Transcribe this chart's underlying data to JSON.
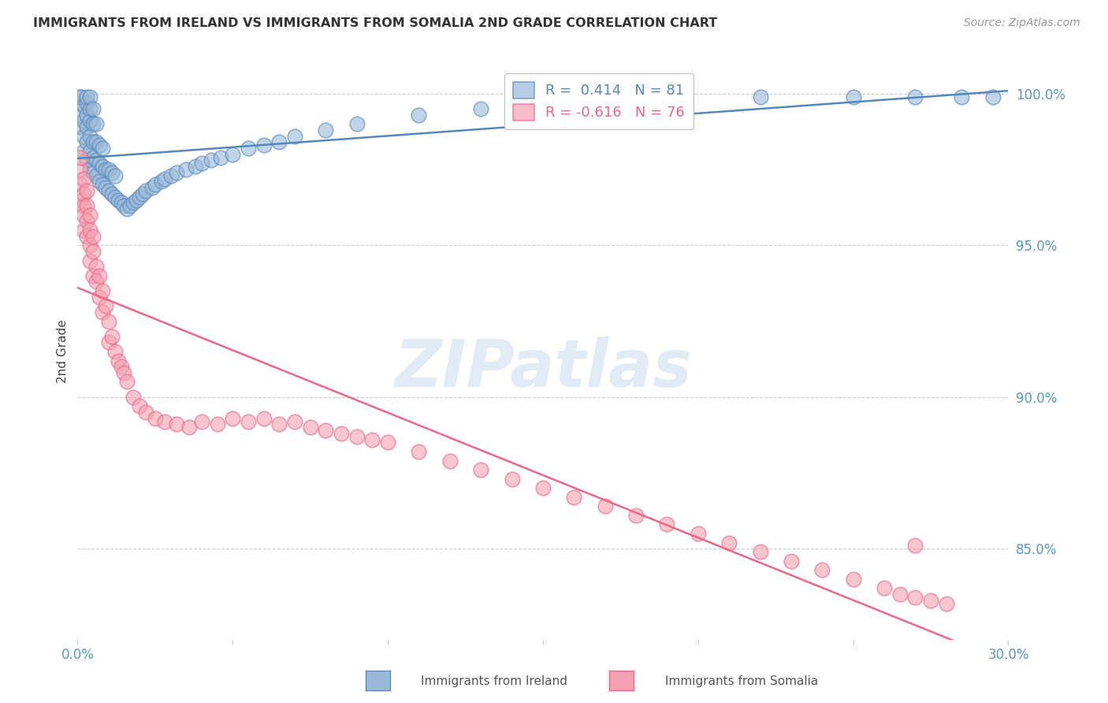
{
  "title": "IMMIGRANTS FROM IRELAND VS IMMIGRANTS FROM SOMALIA 2ND GRADE CORRELATION CHART",
  "source": "Source: ZipAtlas.com",
  "ylabel": "2nd Grade",
  "r_ireland": 0.414,
  "n_ireland": 81,
  "r_somalia": -0.616,
  "n_somalia": 76,
  "color_ireland": "#9AB8D8",
  "color_somalia": "#F4A0B0",
  "color_ireland_line": "#5588BB",
  "color_somalia_line": "#EE6688",
  "color_axis": "#5599CC",
  "watermark": "ZIPatlas",
  "legend_ireland": "Immigrants from Ireland",
  "legend_somalia": "Immigrants from Somalia",
  "xmin": 0.0,
  "xmax": 0.3,
  "ymin": 0.82,
  "ymax": 1.01,
  "ireland_x": [
    0.001,
    0.001,
    0.001,
    0.001,
    0.001,
    0.002,
    0.002,
    0.002,
    0.002,
    0.003,
    0.003,
    0.003,
    0.003,
    0.003,
    0.003,
    0.004,
    0.004,
    0.004,
    0.004,
    0.004,
    0.004,
    0.005,
    0.005,
    0.005,
    0.005,
    0.005,
    0.006,
    0.006,
    0.006,
    0.006,
    0.007,
    0.007,
    0.007,
    0.008,
    0.008,
    0.008,
    0.009,
    0.009,
    0.01,
    0.01,
    0.011,
    0.011,
    0.012,
    0.012,
    0.013,
    0.014,
    0.015,
    0.016,
    0.017,
    0.018,
    0.019,
    0.02,
    0.021,
    0.022,
    0.024,
    0.025,
    0.027,
    0.028,
    0.03,
    0.032,
    0.035,
    0.038,
    0.04,
    0.043,
    0.046,
    0.05,
    0.055,
    0.06,
    0.065,
    0.07,
    0.08,
    0.09,
    0.11,
    0.13,
    0.15,
    0.18,
    0.22,
    0.25,
    0.27,
    0.285,
    0.295
  ],
  "ireland_y": [
    0.989,
    0.993,
    0.997,
    0.999,
    0.999,
    0.981,
    0.986,
    0.991,
    0.996,
    0.978,
    0.984,
    0.989,
    0.993,
    0.997,
    0.999,
    0.975,
    0.981,
    0.986,
    0.991,
    0.995,
    0.999,
    0.974,
    0.979,
    0.984,
    0.99,
    0.995,
    0.973,
    0.978,
    0.984,
    0.99,
    0.971,
    0.977,
    0.983,
    0.97,
    0.976,
    0.982,
    0.969,
    0.975,
    0.968,
    0.975,
    0.967,
    0.974,
    0.966,
    0.973,
    0.965,
    0.964,
    0.963,
    0.962,
    0.963,
    0.964,
    0.965,
    0.966,
    0.967,
    0.968,
    0.969,
    0.97,
    0.971,
    0.972,
    0.973,
    0.974,
    0.975,
    0.976,
    0.977,
    0.978,
    0.979,
    0.98,
    0.982,
    0.983,
    0.984,
    0.986,
    0.988,
    0.99,
    0.993,
    0.995,
    0.997,
    0.998,
    0.999,
    0.999,
    0.999,
    0.999,
    0.999
  ],
  "somalia_x": [
    0.001,
    0.001,
    0.001,
    0.001,
    0.002,
    0.002,
    0.002,
    0.002,
    0.002,
    0.003,
    0.003,
    0.003,
    0.003,
    0.004,
    0.004,
    0.004,
    0.004,
    0.005,
    0.005,
    0.005,
    0.006,
    0.006,
    0.007,
    0.007,
    0.008,
    0.008,
    0.009,
    0.01,
    0.01,
    0.011,
    0.012,
    0.013,
    0.014,
    0.015,
    0.016,
    0.018,
    0.02,
    0.022,
    0.025,
    0.028,
    0.032,
    0.036,
    0.04,
    0.045,
    0.05,
    0.055,
    0.06,
    0.065,
    0.07,
    0.075,
    0.08,
    0.085,
    0.09,
    0.095,
    0.1,
    0.11,
    0.12,
    0.13,
    0.14,
    0.15,
    0.16,
    0.17,
    0.18,
    0.19,
    0.2,
    0.21,
    0.22,
    0.23,
    0.24,
    0.25,
    0.26,
    0.265,
    0.27,
    0.275,
    0.28,
    0.27
  ],
  "somalia_y": [
    0.97,
    0.975,
    0.979,
    0.965,
    0.963,
    0.967,
    0.972,
    0.96,
    0.955,
    0.958,
    0.963,
    0.968,
    0.953,
    0.95,
    0.955,
    0.96,
    0.945,
    0.948,
    0.953,
    0.94,
    0.943,
    0.938,
    0.94,
    0.933,
    0.935,
    0.928,
    0.93,
    0.925,
    0.918,
    0.92,
    0.915,
    0.912,
    0.91,
    0.908,
    0.905,
    0.9,
    0.897,
    0.895,
    0.893,
    0.892,
    0.891,
    0.89,
    0.892,
    0.891,
    0.893,
    0.892,
    0.893,
    0.891,
    0.892,
    0.89,
    0.889,
    0.888,
    0.887,
    0.886,
    0.885,
    0.882,
    0.879,
    0.876,
    0.873,
    0.87,
    0.867,
    0.864,
    0.861,
    0.858,
    0.855,
    0.852,
    0.849,
    0.846,
    0.843,
    0.84,
    0.837,
    0.835,
    0.834,
    0.833,
    0.832,
    0.851
  ]
}
